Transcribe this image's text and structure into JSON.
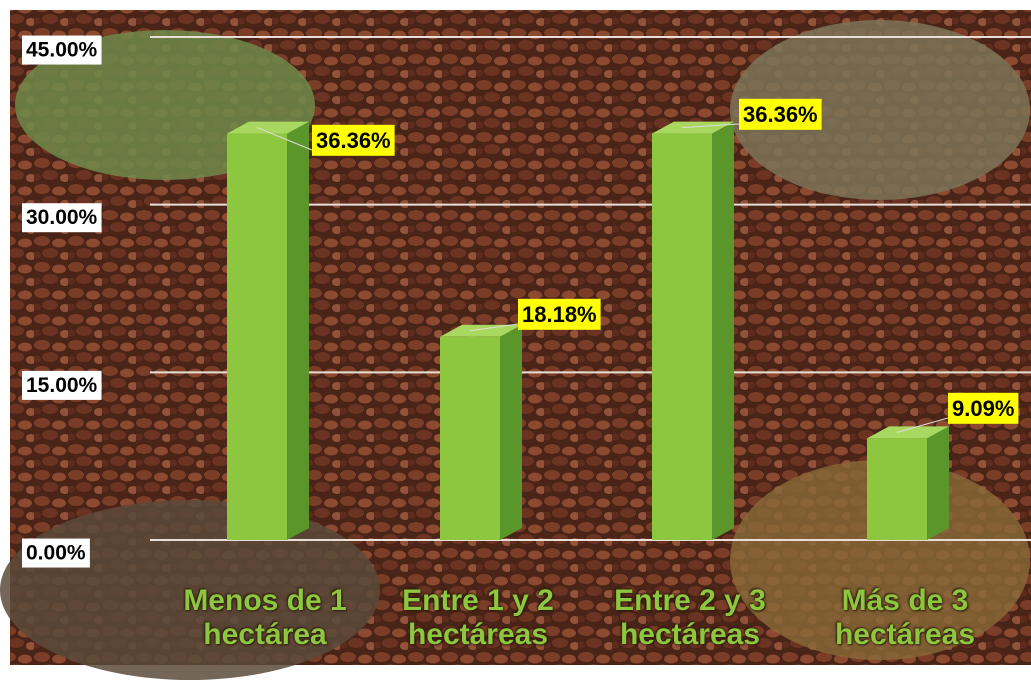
{
  "chart_data": {
    "type": "bar",
    "categories": [
      "Menos de 1 hectárea",
      "Entre 1 y 2 hectáreas",
      "Entre 2 y 3 hectáreas",
      "Más de 3 hectáreas"
    ],
    "values": [
      36.36,
      18.18,
      36.36,
      9.09
    ],
    "value_labels": [
      "36.36%",
      "18.18%",
      "36.36%",
      "9.09%"
    ],
    "color": "#8dc63f",
    "ylim": [
      0,
      45
    ],
    "yticks": [
      {
        "value": 0,
        "label": "0.00%"
      },
      {
        "value": 15,
        "label": "15.00%"
      },
      {
        "value": 30,
        "label": "30.00%"
      },
      {
        "value": 45,
        "label": "45.00%"
      }
    ],
    "grid": true
  }
}
